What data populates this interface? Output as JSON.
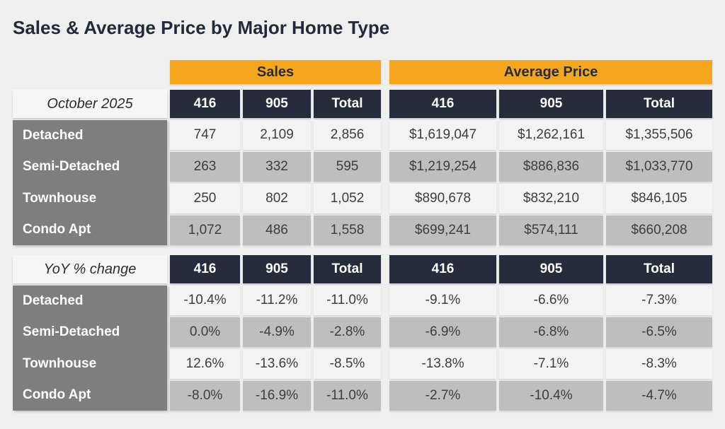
{
  "title": "Sales & Average Price by Major Home Type",
  "colors": {
    "background": "#EFEFEF",
    "accent_orange": "#F4A71D",
    "header_navy": "#262C3B",
    "row_label_gray": "#7E7E7E",
    "row_light": "#F3F3F3",
    "row_shaded": "#BEBEBE",
    "title_text": "#222A3A"
  },
  "chart_data": {
    "type": "table",
    "title": "Sales & Average Price by Major Home Type",
    "group_headers": [
      "Sales",
      "Average Price"
    ],
    "column_headers": [
      "416",
      "905",
      "Total"
    ],
    "sections": [
      {
        "label": "October 2025",
        "rows": [
          {
            "name": "Detached",
            "sales": [
              "747",
              "2,109",
              "2,856"
            ],
            "avg_price": [
              "$1,619,047",
              "$1,262,161",
              "$1,355,506"
            ]
          },
          {
            "name": "Semi-Detached",
            "sales": [
              "263",
              "332",
              "595"
            ],
            "avg_price": [
              "$1,219,254",
              "$886,836",
              "$1,033,770"
            ]
          },
          {
            "name": "Townhouse",
            "sales": [
              "250",
              "802",
              "1,052"
            ],
            "avg_price": [
              "$890,678",
              "$832,210",
              "$846,105"
            ]
          },
          {
            "name": "Condo Apt",
            "sales": [
              "1,072",
              "486",
              "1,558"
            ],
            "avg_price": [
              "$699,241",
              "$574,111",
              "$660,208"
            ]
          }
        ]
      },
      {
        "label": "YoY % change",
        "rows": [
          {
            "name": "Detached",
            "sales": [
              "-10.4%",
              "-11.2%",
              "-11.0%"
            ],
            "avg_price": [
              "-9.1%",
              "-6.6%",
              "-7.3%"
            ]
          },
          {
            "name": "Semi-Detached",
            "sales": [
              "0.0%",
              "-4.9%",
              "-2.8%"
            ],
            "avg_price": [
              "-6.9%",
              "-6.8%",
              "-6.5%"
            ]
          },
          {
            "name": "Townhouse",
            "sales": [
              "12.6%",
              "-13.6%",
              "-8.5%"
            ],
            "avg_price": [
              "-13.8%",
              "-7.1%",
              "-8.3%"
            ]
          },
          {
            "name": "Condo Apt",
            "sales": [
              "-8.0%",
              "-16.9%",
              "-11.0%"
            ],
            "avg_price": [
              "-2.7%",
              "-10.4%",
              "-4.7%"
            ]
          }
        ]
      }
    ]
  }
}
